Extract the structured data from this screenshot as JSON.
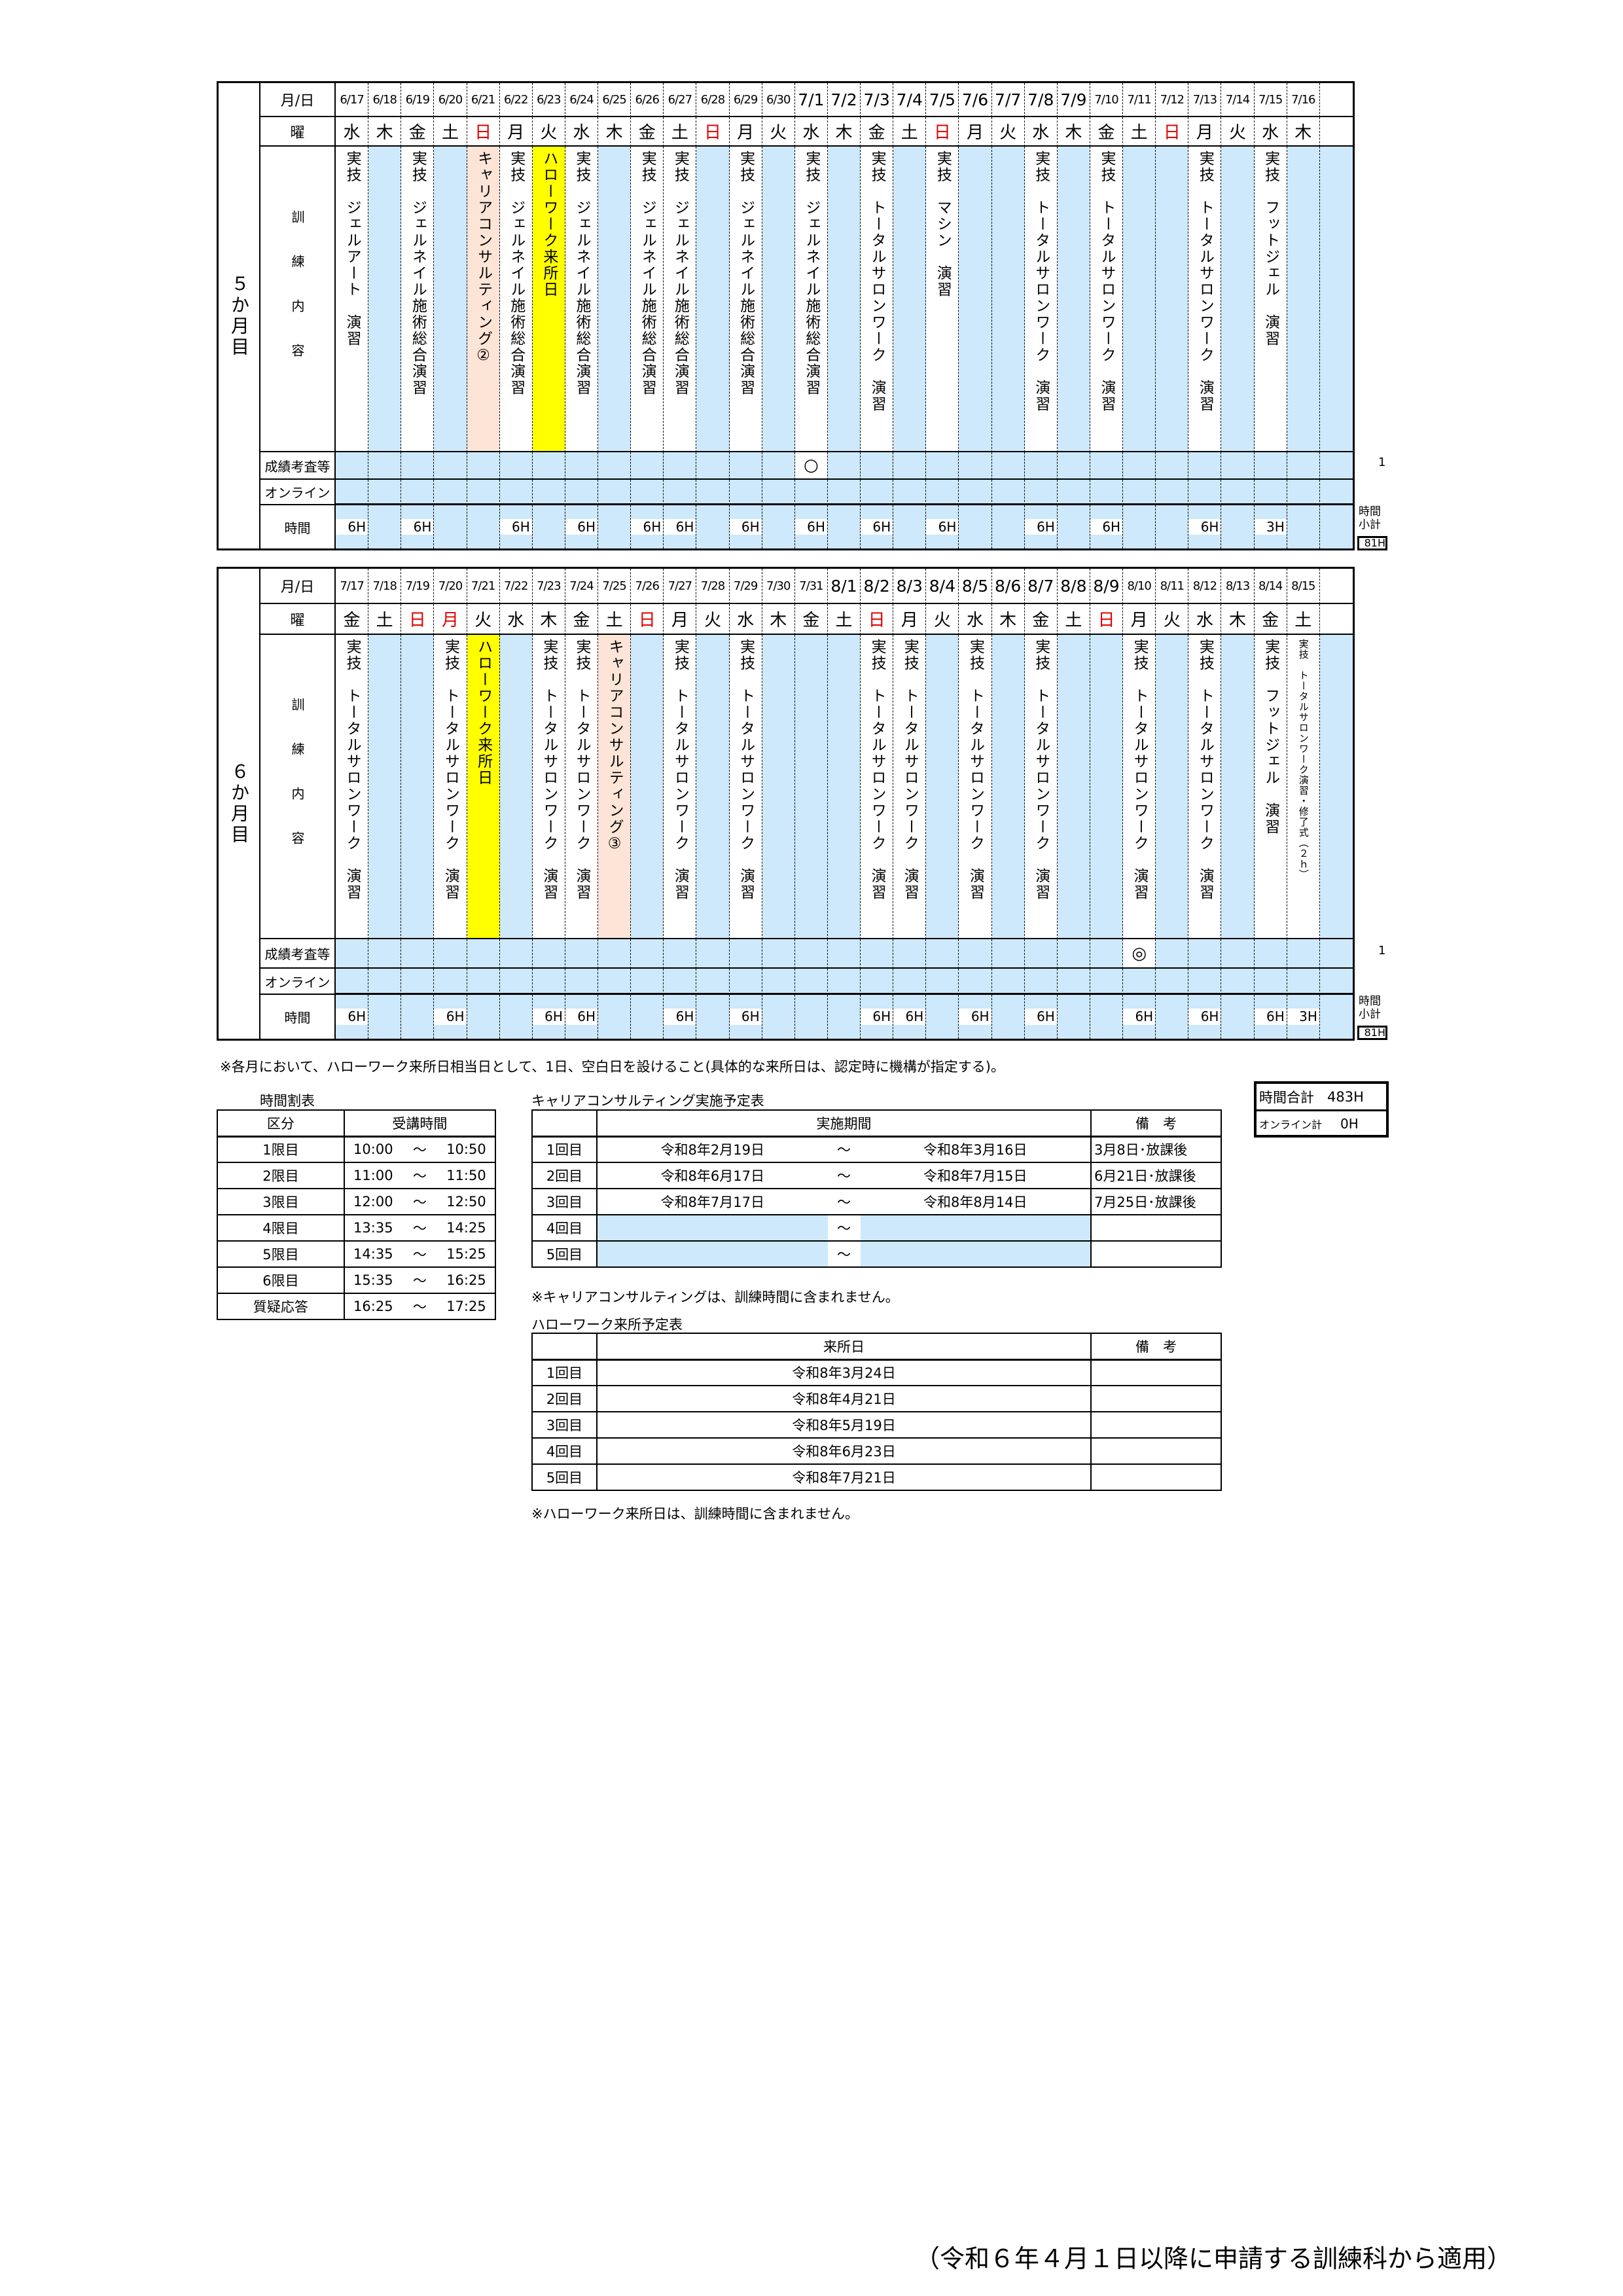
{
  "row_labels": {
    "date": "月/日",
    "dow": "曜",
    "content": "訓練内容",
    "grade": "成績考査等",
    "online": "オンライン",
    "hours": "時間"
  },
  "sections": [
    {
      "month_label": "５か月目",
      "grade_count": "1",
      "subtotal_label": "時間小計",
      "subtotal": "81H",
      "days": [
        {
          "date": "6/17",
          "dow": "水",
          "red": false,
          "bg": "white",
          "content": "実技　ジェルアート　演習",
          "grade": "",
          "hours": "6H"
        },
        {
          "date": "6/18",
          "dow": "木",
          "red": false,
          "bg": "blue",
          "content": "",
          "grade": "",
          "hours": ""
        },
        {
          "date": "6/19",
          "dow": "金",
          "red": false,
          "bg": "white",
          "content": "実技　ジェルネイル施術総合演習",
          "grade": "",
          "hours": "6H"
        },
        {
          "date": "6/20",
          "dow": "土",
          "red": false,
          "bg": "blue",
          "content": "",
          "grade": "",
          "hours": ""
        },
        {
          "date": "6/21",
          "dow": "日",
          "red": true,
          "bg": "peach",
          "content": "キャリアコンサルティング②",
          "grade": "",
          "hours": ""
        },
        {
          "date": "6/22",
          "dow": "月",
          "red": false,
          "bg": "white",
          "content": "実技　ジェルネイル施術総合演習",
          "grade": "",
          "hours": "6H"
        },
        {
          "date": "6/23",
          "dow": "火",
          "red": false,
          "bg": "yellow",
          "content": "ハローワーク来所日",
          "grade": "",
          "hours": ""
        },
        {
          "date": "6/24",
          "dow": "水",
          "red": false,
          "bg": "white",
          "content": "実技　ジェルネイル施術総合演習",
          "grade": "",
          "hours": "6H"
        },
        {
          "date": "6/25",
          "dow": "木",
          "red": false,
          "bg": "blue",
          "content": "",
          "grade": "",
          "hours": ""
        },
        {
          "date": "6/26",
          "dow": "金",
          "red": false,
          "bg": "white",
          "content": "実技　ジェルネイル施術総合演習",
          "grade": "",
          "hours": "6H"
        },
        {
          "date": "6/27",
          "dow": "土",
          "red": false,
          "bg": "white",
          "content": "実技　ジェルネイル施術総合演習",
          "grade": "",
          "hours": "6H"
        },
        {
          "date": "6/28",
          "dow": "日",
          "red": true,
          "bg": "blue",
          "content": "",
          "grade": "",
          "hours": ""
        },
        {
          "date": "6/29",
          "dow": "月",
          "red": false,
          "bg": "white",
          "content": "実技　ジェルネイル施術総合演習",
          "grade": "",
          "hours": "6H"
        },
        {
          "date": "6/30",
          "dow": "火",
          "red": false,
          "bg": "blue",
          "content": "",
          "grade": "",
          "hours": ""
        },
        {
          "date": "7/1",
          "dow": "水",
          "red": false,
          "bg": "white",
          "content": "実技　ジェルネイル施術総合演習",
          "grade": "○",
          "hours": "6H"
        },
        {
          "date": "7/2",
          "dow": "木",
          "red": false,
          "bg": "blue",
          "content": "",
          "grade": "",
          "hours": ""
        },
        {
          "date": "7/3",
          "dow": "金",
          "red": false,
          "bg": "white",
          "content": "実技　トータルサロンワーク　演習",
          "grade": "",
          "hours": "6H"
        },
        {
          "date": "7/4",
          "dow": "土",
          "red": false,
          "bg": "blue",
          "content": "",
          "grade": "",
          "hours": ""
        },
        {
          "date": "7/5",
          "dow": "日",
          "red": true,
          "bg": "white",
          "content": "実技　マシン　演習",
          "grade": "",
          "hours": "6H"
        },
        {
          "date": "7/6",
          "dow": "月",
          "red": false,
          "bg": "blue",
          "content": "",
          "grade": "",
          "hours": ""
        },
        {
          "date": "7/7",
          "dow": "火",
          "red": false,
          "bg": "blue",
          "content": "",
          "grade": "",
          "hours": ""
        },
        {
          "date": "7/8",
          "dow": "水",
          "red": false,
          "bg": "white",
          "content": "実技　トータルサロンワーク　演習",
          "grade": "",
          "hours": "6H"
        },
        {
          "date": "7/9",
          "dow": "木",
          "red": false,
          "bg": "blue",
          "content": "",
          "grade": "",
          "hours": ""
        },
        {
          "date": "7/10",
          "dow": "金",
          "red": false,
          "bg": "white",
          "content": "実技　トータルサロンワーク　演習",
          "grade": "",
          "hours": "6H"
        },
        {
          "date": "7/11",
          "dow": "土",
          "red": false,
          "bg": "blue",
          "content": "",
          "grade": "",
          "hours": ""
        },
        {
          "date": "7/12",
          "dow": "日",
          "red": true,
          "bg": "blue",
          "content": "",
          "grade": "",
          "hours": ""
        },
        {
          "date": "7/13",
          "dow": "月",
          "red": false,
          "bg": "white",
          "content": "実技　トータルサロンワーク　演習",
          "grade": "",
          "hours": "6H"
        },
        {
          "date": "7/14",
          "dow": "火",
          "red": false,
          "bg": "blue",
          "content": "",
          "grade": "",
          "hours": ""
        },
        {
          "date": "7/15",
          "dow": "水",
          "red": false,
          "bg": "white",
          "content": "実技　フットジェル　演習",
          "grade": "",
          "hours": "3H"
        },
        {
          "date": "7/16",
          "dow": "木",
          "red": false,
          "bg": "blue",
          "content": "",
          "grade": "",
          "hours": ""
        },
        {
          "date": "",
          "dow": "",
          "red": false,
          "bg": "blue",
          "content": "",
          "grade": "",
          "hours": ""
        }
      ]
    },
    {
      "month_label": "６か月目",
      "grade_count": "1",
      "subtotal_label": "時間小計",
      "subtotal": "81H",
      "days": [
        {
          "date": "7/17",
          "dow": "金",
          "red": false,
          "bg": "white",
          "content": "実技　トータルサロンワーク　演習",
          "grade": "",
          "hours": "6H"
        },
        {
          "date": "7/18",
          "dow": "土",
          "red": false,
          "bg": "blue",
          "content": "",
          "grade": "",
          "hours": ""
        },
        {
          "date": "7/19",
          "dow": "日",
          "red": true,
          "bg": "blue",
          "content": "",
          "grade": "",
          "hours": ""
        },
        {
          "date": "7/20",
          "dow": "月",
          "red": true,
          "bg": "white",
          "content": "実技　トータルサロンワーク　演習",
          "grade": "",
          "hours": "6H"
        },
        {
          "date": "7/21",
          "dow": "火",
          "red": false,
          "bg": "yellow",
          "content": "ハローワーク来所日",
          "grade": "",
          "hours": ""
        },
        {
          "date": "7/22",
          "dow": "水",
          "red": false,
          "bg": "blue",
          "content": "",
          "grade": "",
          "hours": ""
        },
        {
          "date": "7/23",
          "dow": "木",
          "red": false,
          "bg": "white",
          "content": "実技　トータルサロンワーク　演習",
          "grade": "",
          "hours": "6H"
        },
        {
          "date": "7/24",
          "dow": "金",
          "red": false,
          "bg": "white",
          "content": "実技　トータルサロンワーク　演習",
          "grade": "",
          "hours": "6H"
        },
        {
          "date": "7/25",
          "dow": "土",
          "red": false,
          "bg": "peach",
          "content": "キャリアコンサルティング③",
          "grade": "",
          "hours": ""
        },
        {
          "date": "7/26",
          "dow": "日",
          "red": true,
          "bg": "blue",
          "content": "",
          "grade": "",
          "hours": ""
        },
        {
          "date": "7/27",
          "dow": "月",
          "red": false,
          "bg": "white",
          "content": "実技　トータルサロンワーク　演習",
          "grade": "",
          "hours": "6H"
        },
        {
          "date": "7/28",
          "dow": "火",
          "red": false,
          "bg": "blue",
          "content": "",
          "grade": "",
          "hours": ""
        },
        {
          "date": "7/29",
          "dow": "水",
          "red": false,
          "bg": "white",
          "content": "実技　トータルサロンワーク　演習",
          "grade": "",
          "hours": "6H"
        },
        {
          "date": "7/30",
          "dow": "木",
          "red": false,
          "bg": "blue",
          "content": "",
          "grade": "",
          "hours": ""
        },
        {
          "date": "7/31",
          "dow": "金",
          "red": false,
          "bg": "blue",
          "content": "",
          "grade": "",
          "hours": ""
        },
        {
          "date": "8/1",
          "dow": "土",
          "red": false,
          "bg": "blue",
          "content": "",
          "grade": "",
          "hours": ""
        },
        {
          "date": "8/2",
          "dow": "日",
          "red": true,
          "bg": "white",
          "content": "実技　トータルサロンワーク　演習",
          "grade": "",
          "hours": "6H"
        },
        {
          "date": "8/3",
          "dow": "月",
          "red": false,
          "bg": "white",
          "content": "実技　トータルサロンワーク　演習",
          "grade": "",
          "hours": "6H"
        },
        {
          "date": "8/4",
          "dow": "火",
          "red": false,
          "bg": "blue",
          "content": "",
          "grade": "",
          "hours": ""
        },
        {
          "date": "8/5",
          "dow": "水",
          "red": false,
          "bg": "white",
          "content": "実技　トータルサロンワーク　演習",
          "grade": "",
          "hours": "6H"
        },
        {
          "date": "8/6",
          "dow": "木",
          "red": false,
          "bg": "blue",
          "content": "",
          "grade": "",
          "hours": ""
        },
        {
          "date": "8/7",
          "dow": "金",
          "red": false,
          "bg": "white",
          "content": "実技　トータルサロンワーク　演習",
          "grade": "",
          "hours": "6H"
        },
        {
          "date": "8/8",
          "dow": "土",
          "red": false,
          "bg": "blue",
          "content": "",
          "grade": "",
          "hours": ""
        },
        {
          "date": "8/9",
          "dow": "日",
          "red": true,
          "bg": "blue",
          "content": "",
          "grade": "",
          "hours": ""
        },
        {
          "date": "8/10",
          "dow": "月",
          "red": false,
          "bg": "white",
          "content": "実技　トータルサロンワーク　演習",
          "grade": "◎",
          "hours": "6H"
        },
        {
          "date": "8/11",
          "dow": "火",
          "red": false,
          "bg": "blue",
          "content": "",
          "grade": "",
          "hours": ""
        },
        {
          "date": "8/12",
          "dow": "水",
          "red": false,
          "bg": "white",
          "content": "実技　トータルサロンワーク　演習",
          "grade": "",
          "hours": "6H"
        },
        {
          "date": "8/13",
          "dow": "木",
          "red": false,
          "bg": "blue",
          "content": "",
          "grade": "",
          "hours": ""
        },
        {
          "date": "8/14",
          "dow": "金",
          "red": false,
          "bg": "white",
          "content": "実技　フットジェル　演習",
          "grade": "",
          "hours": "6H"
        },
        {
          "date": "8/15",
          "dow": "土",
          "red": false,
          "bg": "white",
          "content": "実技　トータルサロンワーク演習・修了式（２ｈ）",
          "small": true,
          "grade": "",
          "hours": "3H"
        },
        {
          "date": "",
          "dow": "",
          "red": false,
          "bg": "blue",
          "content": "",
          "grade": "",
          "hours": ""
        }
      ]
    }
  ],
  "note_top": "※各月において、ハローワーク来所日相当日として、1日、空白日を設けること(具体的な来所日は、認定時に機構が指定する)。",
  "timetable": {
    "title": "時間割表",
    "headers": [
      "区分",
      "受講時間"
    ],
    "rows": [
      {
        "label": "1限目",
        "start": "10:00",
        "sep": "～",
        "end": "10:50"
      },
      {
        "label": "2限目",
        "start": "11:00",
        "sep": "～",
        "end": "11:50"
      },
      {
        "label": "3限目",
        "start": "12:00",
        "sep": "～",
        "end": "12:50"
      },
      {
        "label": "4限目",
        "start": "13:35",
        "sep": "～",
        "end": "14:25"
      },
      {
        "label": "5限目",
        "start": "14:35",
        "sep": "～",
        "end": "15:25"
      },
      {
        "label": "6限目",
        "start": "15:35",
        "sep": "～",
        "end": "16:25"
      },
      {
        "label": "質疑応答",
        "start": "16:25",
        "sep": "～",
        "end": "17:25"
      }
    ]
  },
  "career": {
    "title": "キャリアコンサルティング実施予定表",
    "headers": [
      "",
      "実施期間",
      "備　考"
    ],
    "rows": [
      {
        "label": "1回目",
        "start": "令和8年2月19日",
        "sep": "～",
        "end": "令和8年3月16日",
        "note": "3月8日･放課後"
      },
      {
        "label": "2回目",
        "start": "令和8年6月17日",
        "sep": "～",
        "end": "令和8年7月15日",
        "note": "6月21日･放課後"
      },
      {
        "label": "3回目",
        "start": "令和8年7月17日",
        "sep": "～",
        "end": "令和8年8月14日",
        "note": "7月25日･放課後"
      },
      {
        "label": "4回目",
        "start": "",
        "sep": "～",
        "end": "",
        "note": ""
      },
      {
        "label": "5回目",
        "start": "",
        "sep": "～",
        "end": "",
        "note": ""
      }
    ],
    "footnote": "※キャリアコンサルティングは、訓練時間に含まれません。"
  },
  "hellowork": {
    "title": "ハローワーク来所予定表",
    "headers": [
      "",
      "来所日",
      "備　考"
    ],
    "rows": [
      {
        "label": "1回目",
        "date": "令和8年3月24日",
        "note": ""
      },
      {
        "label": "2回目",
        "date": "令和8年4月21日",
        "note": ""
      },
      {
        "label": "3回目",
        "date": "令和8年5月19日",
        "note": ""
      },
      {
        "label": "4回目",
        "date": "令和8年6月23日",
        "note": ""
      },
      {
        "label": "5回目",
        "date": "令和8年7月21日",
        "note": ""
      }
    ],
    "footnote": "※ハローワーク来所日は、訓練時間に含まれません。"
  },
  "totals": {
    "total_label": "時間合計",
    "total": "483H",
    "online_label": "オンライン計",
    "online": "0H"
  },
  "footer": "（令和６年４月１日以降に申請する訓練科から適用）",
  "colors": {
    "no_training": "#cde9fb",
    "career": "#fce4d6",
    "hellowork": "#ffff00",
    "holiday_text": "#e00000"
  }
}
